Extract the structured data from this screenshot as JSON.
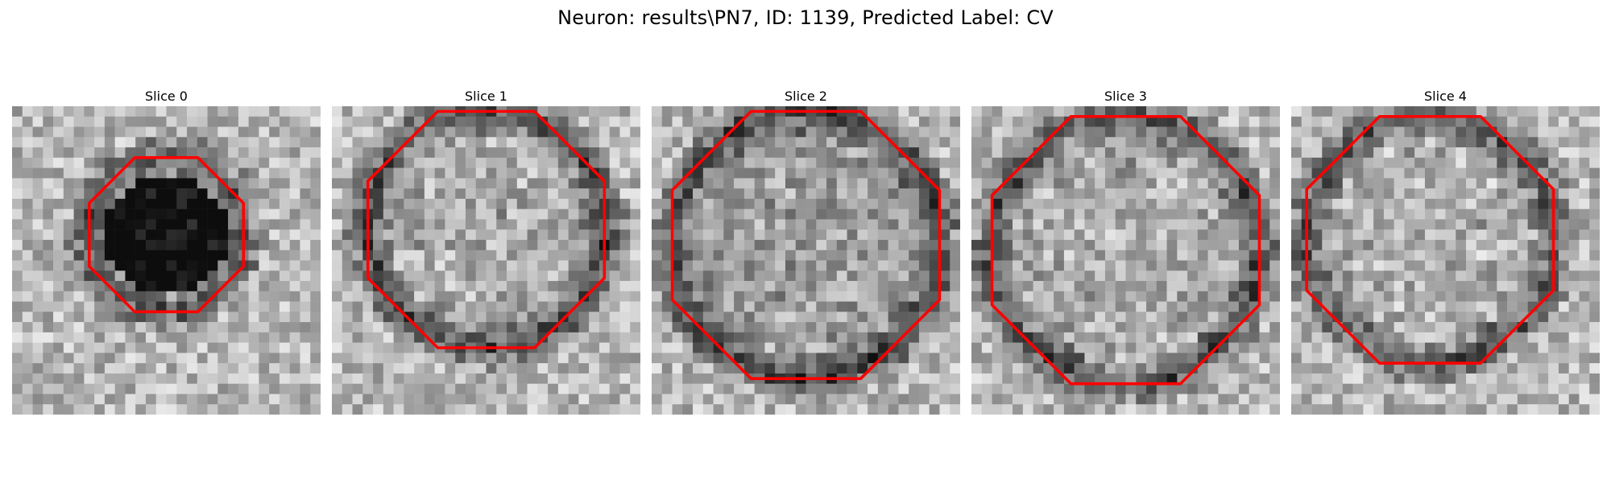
{
  "figure": {
    "title": "Neuron: results\\PN7, ID: 1139, Predicted Label: CV",
    "slices": [
      {
        "label": "Slice 0"
      },
      {
        "label": "Slice 1"
      },
      {
        "label": "Slice 2"
      },
      {
        "label": "Slice 3"
      },
      {
        "label": "Slice 4"
      }
    ],
    "contour_color": "#ff0000",
    "colormap": "grayscale"
  }
}
